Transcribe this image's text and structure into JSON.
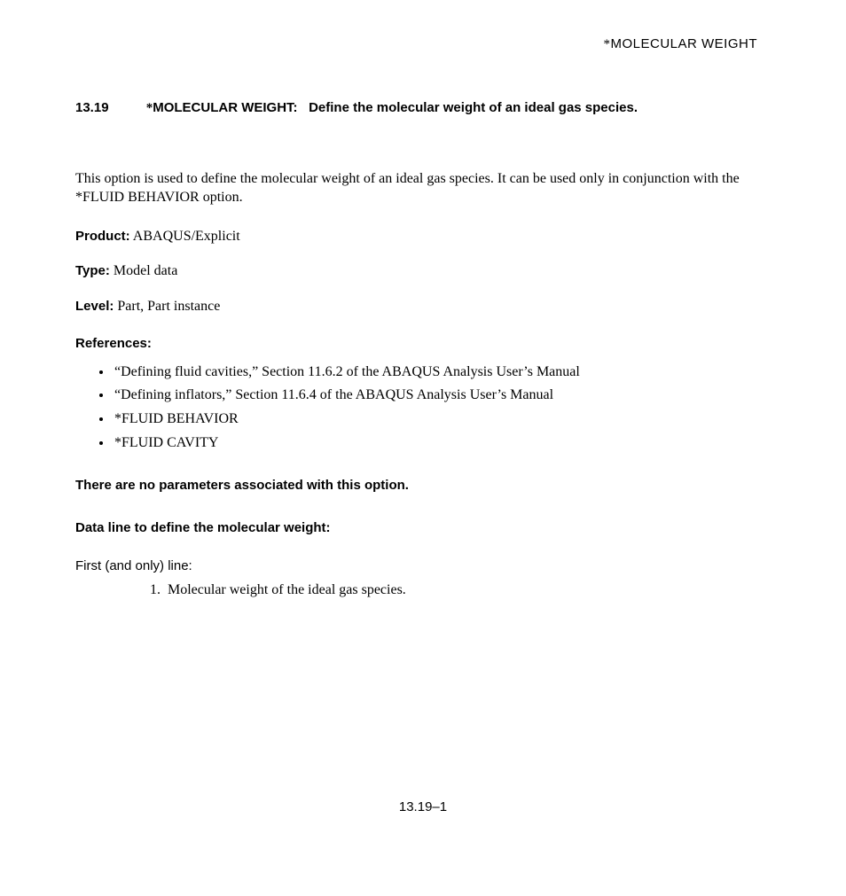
{
  "header": {
    "running_head": "MOLECULAR WEIGHT"
  },
  "section": {
    "number": "13.19",
    "keyword": "MOLECULAR WEIGHT:",
    "subtitle": "Define the molecular weight of an ideal gas species."
  },
  "intro": "This option is used to define the molecular weight of an ideal gas species. It can be used only in conjunction with the *FLUID BEHAVIOR option.",
  "fields": {
    "product_label": "Product:",
    "product_value": "ABAQUS/Explicit",
    "type_label": "Type:",
    "type_value": "Model data",
    "level_label": "Level:",
    "level_value": "Part, Part instance"
  },
  "references": {
    "heading": "References:",
    "items": [
      "“Defining fluid cavities,” Section 11.6.2 of the ABAQUS Analysis User’s Manual",
      "“Defining inflators,” Section 11.6.4 of the ABAQUS Analysis User’s Manual",
      "*FLUID BEHAVIOR",
      "*FLUID CAVITY"
    ]
  },
  "no_params": "There are no parameters associated with this option.",
  "dataline": {
    "heading": "Data line to define the molecular weight:",
    "first_line_label": "First (and only) line:",
    "items": [
      "Molecular weight of the ideal gas species."
    ]
  },
  "footer": "13.19–1"
}
